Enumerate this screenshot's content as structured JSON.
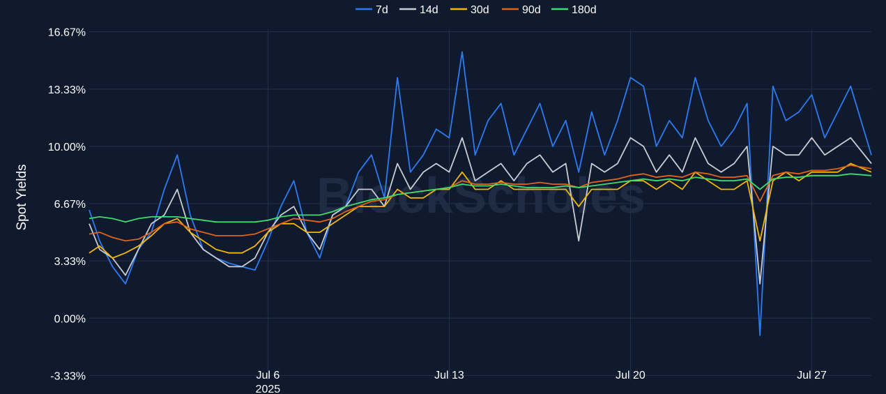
{
  "chart_data": {
    "type": "line",
    "watermark": "BlockScholes",
    "ylabel": "Spot Yields",
    "y_ticks": [
      "16.67%",
      "13.33%",
      "10.00%",
      "6.67%",
      "3.33%",
      "0.00%",
      "-3.33%"
    ],
    "y_tick_values": [
      16.67,
      13.33,
      10.0,
      6.67,
      3.33,
      0.0,
      -3.33
    ],
    "ylim": [
      -3.6,
      17.3
    ],
    "x_ticks": [
      {
        "label": "Jul 6",
        "sub": "2025",
        "day": 6
      },
      {
        "label": "Jul 13",
        "sub": "",
        "day": 13
      },
      {
        "label": "Jul 20",
        "sub": "",
        "day": 20
      },
      {
        "label": "Jul 27",
        "sub": "",
        "day": 27
      }
    ],
    "xlim_days": [
      -0.9,
      29.3
    ],
    "x_unit": "day of July 2025",
    "legend_position": "top-center",
    "grid": true,
    "colors": {
      "background": "#101a2e",
      "grid": "#22304a",
      "7d": "#2d7bf0",
      "14d": "#c9cdd4",
      "30d": "#f2b705",
      "90d": "#e0631a",
      "180d": "#3ddc6e"
    },
    "series": [
      {
        "name": "7d",
        "color": "#2d7bf0",
        "x": [
          -0.9,
          -0.5,
          0,
          0.5,
          1,
          1.5,
          2,
          2.5,
          3,
          3.5,
          4,
          4.5,
          5,
          5.5,
          6,
          6.5,
          7,
          7.5,
          8,
          8.5,
          9,
          9.5,
          10,
          10.5,
          11,
          11.5,
          12,
          12.5,
          13,
          13.5,
          14,
          14.5,
          15,
          15.5,
          16,
          16.5,
          17,
          17.5,
          18,
          18.5,
          19,
          19.5,
          20,
          20.5,
          21,
          21.5,
          22,
          22.5,
          23,
          23.5,
          24,
          24.5,
          25,
          25.5,
          26,
          26.5,
          27,
          27.5,
          28,
          28.5,
          29.3
        ],
        "y": [
          6.3,
          4.5,
          3.0,
          2.0,
          4.0,
          5.0,
          7.5,
          9.5,
          6.0,
          4.0,
          3.5,
          3.2,
          3.0,
          2.8,
          4.5,
          6.5,
          8.0,
          5.0,
          3.5,
          6.0,
          6.5,
          8.5,
          9.5,
          7.0,
          14.0,
          8.5,
          9.5,
          11.0,
          10.5,
          15.5,
          9.5,
          11.5,
          12.5,
          9.5,
          11.0,
          12.5,
          10.0,
          11.5,
          8.5,
          12.0,
          9.5,
          11.5,
          14.0,
          13.5,
          10.0,
          11.5,
          10.5,
          14.0,
          11.5,
          10.0,
          11.0,
          12.5,
          -1.0,
          13.5,
          11.5,
          12.0,
          13.0,
          10.5,
          12.0,
          13.5,
          9.5
        ]
      },
      {
        "name": "14d",
        "color": "#c9cdd4",
        "x": [
          -0.9,
          -0.5,
          0,
          0.5,
          1,
          1.5,
          2,
          2.5,
          3,
          3.5,
          4,
          4.5,
          5,
          5.5,
          6,
          6.5,
          7,
          7.5,
          8,
          8.5,
          9,
          9.5,
          10,
          10.5,
          11,
          11.5,
          12,
          12.5,
          13,
          13.5,
          14,
          14.5,
          15,
          15.5,
          16,
          16.5,
          17,
          17.5,
          18,
          18.5,
          19,
          19.5,
          20,
          20.5,
          21,
          21.5,
          22,
          22.5,
          23,
          23.5,
          24,
          24.5,
          25,
          25.5,
          26,
          26.5,
          27,
          27.5,
          28,
          28.5,
          29.3
        ],
        "y": [
          5.5,
          4.0,
          3.5,
          2.5,
          4.0,
          5.5,
          6.0,
          7.5,
          5.0,
          4.0,
          3.5,
          3.0,
          3.0,
          3.5,
          5.0,
          6.0,
          6.5,
          5.0,
          4.0,
          6.0,
          6.5,
          7.5,
          7.5,
          6.5,
          9.0,
          7.5,
          8.5,
          9.0,
          8.5,
          10.5,
          8.0,
          8.5,
          9.0,
          8.0,
          9.0,
          9.5,
          8.5,
          9.0,
          4.5,
          9.0,
          8.5,
          9.0,
          10.5,
          10.0,
          8.5,
          9.5,
          8.5,
          10.5,
          9.0,
          8.5,
          9.0,
          10.0,
          2.0,
          10.0,
          9.5,
          9.5,
          10.5,
          9.5,
          10.0,
          10.5,
          9.0
        ]
      },
      {
        "name": "30d",
        "color": "#f2b705",
        "x": [
          -0.9,
          -0.5,
          0,
          0.5,
          1,
          1.5,
          2,
          2.5,
          3,
          3.5,
          4,
          4.5,
          5,
          5.5,
          6,
          6.5,
          7,
          7.5,
          8,
          8.5,
          9,
          9.5,
          10,
          10.5,
          11,
          11.5,
          12,
          12.5,
          13,
          13.5,
          14,
          14.5,
          15,
          15.5,
          16,
          16.5,
          17,
          17.5,
          18,
          18.5,
          19,
          19.5,
          20,
          20.5,
          21,
          21.5,
          22,
          22.5,
          23,
          23.5,
          24,
          24.5,
          25,
          25.5,
          26,
          26.5,
          27,
          27.5,
          28,
          28.5,
          29.3
        ],
        "y": [
          3.8,
          4.2,
          3.5,
          3.8,
          4.2,
          4.8,
          5.5,
          5.8,
          5.0,
          4.5,
          4.0,
          3.8,
          3.8,
          4.2,
          5.0,
          5.5,
          5.5,
          5.0,
          5.0,
          5.5,
          6.0,
          6.5,
          6.5,
          6.5,
          7.5,
          7.0,
          7.0,
          7.5,
          7.5,
          8.5,
          7.5,
          7.5,
          8.0,
          7.5,
          7.5,
          7.5,
          7.5,
          7.5,
          6.5,
          7.5,
          7.5,
          7.5,
          8.0,
          8.0,
          7.5,
          8.0,
          7.5,
          8.5,
          8.0,
          7.5,
          7.5,
          8.0,
          4.5,
          8.0,
          8.5,
          8.0,
          8.5,
          8.5,
          8.5,
          9.0,
          8.5
        ]
      },
      {
        "name": "90d",
        "color": "#e0631a",
        "x": [
          -0.9,
          -0.5,
          0,
          0.5,
          1,
          1.5,
          2,
          2.5,
          3,
          3.5,
          4,
          4.5,
          5,
          5.5,
          6,
          6.5,
          7,
          7.5,
          8,
          8.5,
          9,
          9.5,
          10,
          10.5,
          11,
          11.5,
          12,
          12.5,
          13,
          13.5,
          14,
          14.5,
          15,
          15.5,
          16,
          16.5,
          17,
          17.5,
          18,
          18.5,
          19,
          19.5,
          20,
          20.5,
          21,
          21.5,
          22,
          22.5,
          23,
          23.5,
          24,
          24.5,
          25,
          25.5,
          26,
          26.5,
          27,
          27.5,
          28,
          28.5,
          29.3
        ],
        "y": [
          4.9,
          5.0,
          4.7,
          4.5,
          4.6,
          5.0,
          5.5,
          5.6,
          5.2,
          5.0,
          4.8,
          4.8,
          4.8,
          4.9,
          5.2,
          5.5,
          5.8,
          5.7,
          5.6,
          5.8,
          6.2,
          6.5,
          6.8,
          6.9,
          7.2,
          7.3,
          7.4,
          7.5,
          7.6,
          8.0,
          7.8,
          7.8,
          7.9,
          7.8,
          7.8,
          7.9,
          7.8,
          7.8,
          7.6,
          7.9,
          8.0,
          8.1,
          8.3,
          8.4,
          8.2,
          8.3,
          8.2,
          8.5,
          8.4,
          8.2,
          8.2,
          8.3,
          6.8,
          8.3,
          8.5,
          8.4,
          8.6,
          8.6,
          8.7,
          8.9,
          8.7
        ]
      },
      {
        "name": "180d",
        "color": "#3ddc6e",
        "x": [
          -0.9,
          -0.5,
          0,
          0.5,
          1,
          1.5,
          2,
          2.5,
          3,
          3.5,
          4,
          4.5,
          5,
          5.5,
          6,
          6.5,
          7,
          7.5,
          8,
          8.5,
          9,
          9.5,
          10,
          10.5,
          11,
          11.5,
          12,
          12.5,
          13,
          13.5,
          14,
          14.5,
          15,
          15.5,
          16,
          16.5,
          17,
          17.5,
          18,
          18.5,
          19,
          19.5,
          20,
          20.5,
          21,
          21.5,
          22,
          22.5,
          23,
          23.5,
          24,
          24.5,
          25,
          25.5,
          26,
          26.5,
          27,
          27.5,
          28,
          28.5,
          29.3
        ],
        "y": [
          5.8,
          5.9,
          5.8,
          5.6,
          5.8,
          5.9,
          5.9,
          5.9,
          5.8,
          5.7,
          5.6,
          5.6,
          5.6,
          5.6,
          5.7,
          5.9,
          6.0,
          6.0,
          6.0,
          6.2,
          6.5,
          6.7,
          6.9,
          7.0,
          7.2,
          7.3,
          7.4,
          7.5,
          7.6,
          7.8,
          7.7,
          7.7,
          7.8,
          7.7,
          7.6,
          7.6,
          7.6,
          7.7,
          7.6,
          7.7,
          7.8,
          7.9,
          8.0,
          8.1,
          8.0,
          8.1,
          8.0,
          8.2,
          8.1,
          8.0,
          8.0,
          8.1,
          7.5,
          8.1,
          8.2,
          8.2,
          8.3,
          8.3,
          8.3,
          8.4,
          8.3
        ]
      }
    ]
  }
}
